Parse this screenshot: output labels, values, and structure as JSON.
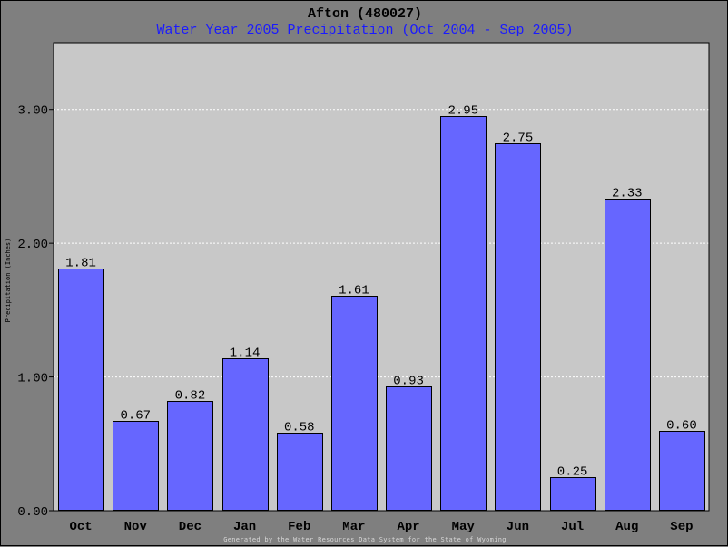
{
  "chart_data": {
    "type": "bar",
    "title": "Afton (480027)",
    "subtitle": "Water Year 2005 Precipitation (Oct 2004 - Sep 2005)",
    "xlabel": "",
    "ylabel": "Precipitation (Inches)",
    "categories": [
      "Oct",
      "Nov",
      "Dec",
      "Jan",
      "Feb",
      "Mar",
      "Apr",
      "May",
      "Jun",
      "Jul",
      "Aug",
      "Sep"
    ],
    "values": [
      1.81,
      0.67,
      0.82,
      1.14,
      0.58,
      1.61,
      0.93,
      2.95,
      2.75,
      0.25,
      2.33,
      0.6
    ],
    "value_labels": [
      "1.81",
      "0.67",
      "0.82",
      "1.14",
      "0.58",
      "1.61",
      "0.93",
      "2.95",
      "2.75",
      "0.25",
      "2.33",
      "0.60"
    ],
    "ylim": [
      0,
      3.5
    ],
    "yticks": [
      0,
      1,
      2,
      3
    ],
    "ytick_labels": [
      "0.00",
      "1.00",
      "2.00",
      "3.00"
    ],
    "grid": true,
    "bar_color": "#6666ff",
    "plot_background": "#c8c8c8",
    "frame_background": "#7f7f7f",
    "subtitle_color": "#1a1aff",
    "footer": "Generated by the Water Resources Data System for the State of Wyoming"
  }
}
